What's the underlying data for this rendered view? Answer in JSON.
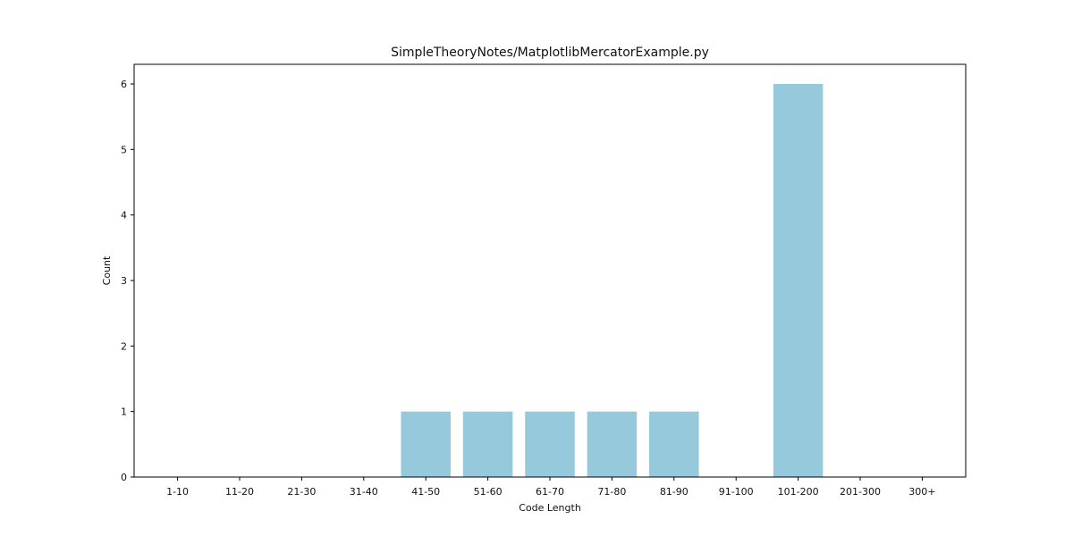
{
  "chart_data": {
    "type": "bar",
    "title": "SimpleTheoryNotes/MatplotlibMercatorExample.py",
    "xlabel": "Code Length",
    "ylabel": "Count",
    "categories": [
      "1-10",
      "11-20",
      "21-30",
      "31-40",
      "41-50",
      "51-60",
      "61-70",
      "71-80",
      "81-90",
      "91-100",
      "101-200",
      "201-300",
      "300+"
    ],
    "values": [
      0,
      0,
      0,
      0,
      1,
      1,
      1,
      1,
      1,
      0,
      6,
      0,
      0
    ],
    "ylim": [
      0,
      6.3
    ],
    "yticks": [
      0,
      1,
      2,
      3,
      4,
      5,
      6
    ],
    "grid": false,
    "colors": {
      "bar": "#96c9dc",
      "axis": "#000000"
    }
  }
}
